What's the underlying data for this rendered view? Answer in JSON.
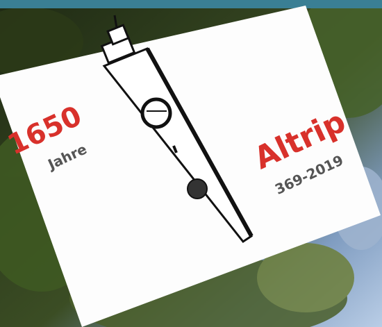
{
  "sign": {
    "left": {
      "number": "1650",
      "word": "Jahre"
    },
    "right": {
      "name": "Altrip",
      "years": "369-2019"
    }
  }
}
